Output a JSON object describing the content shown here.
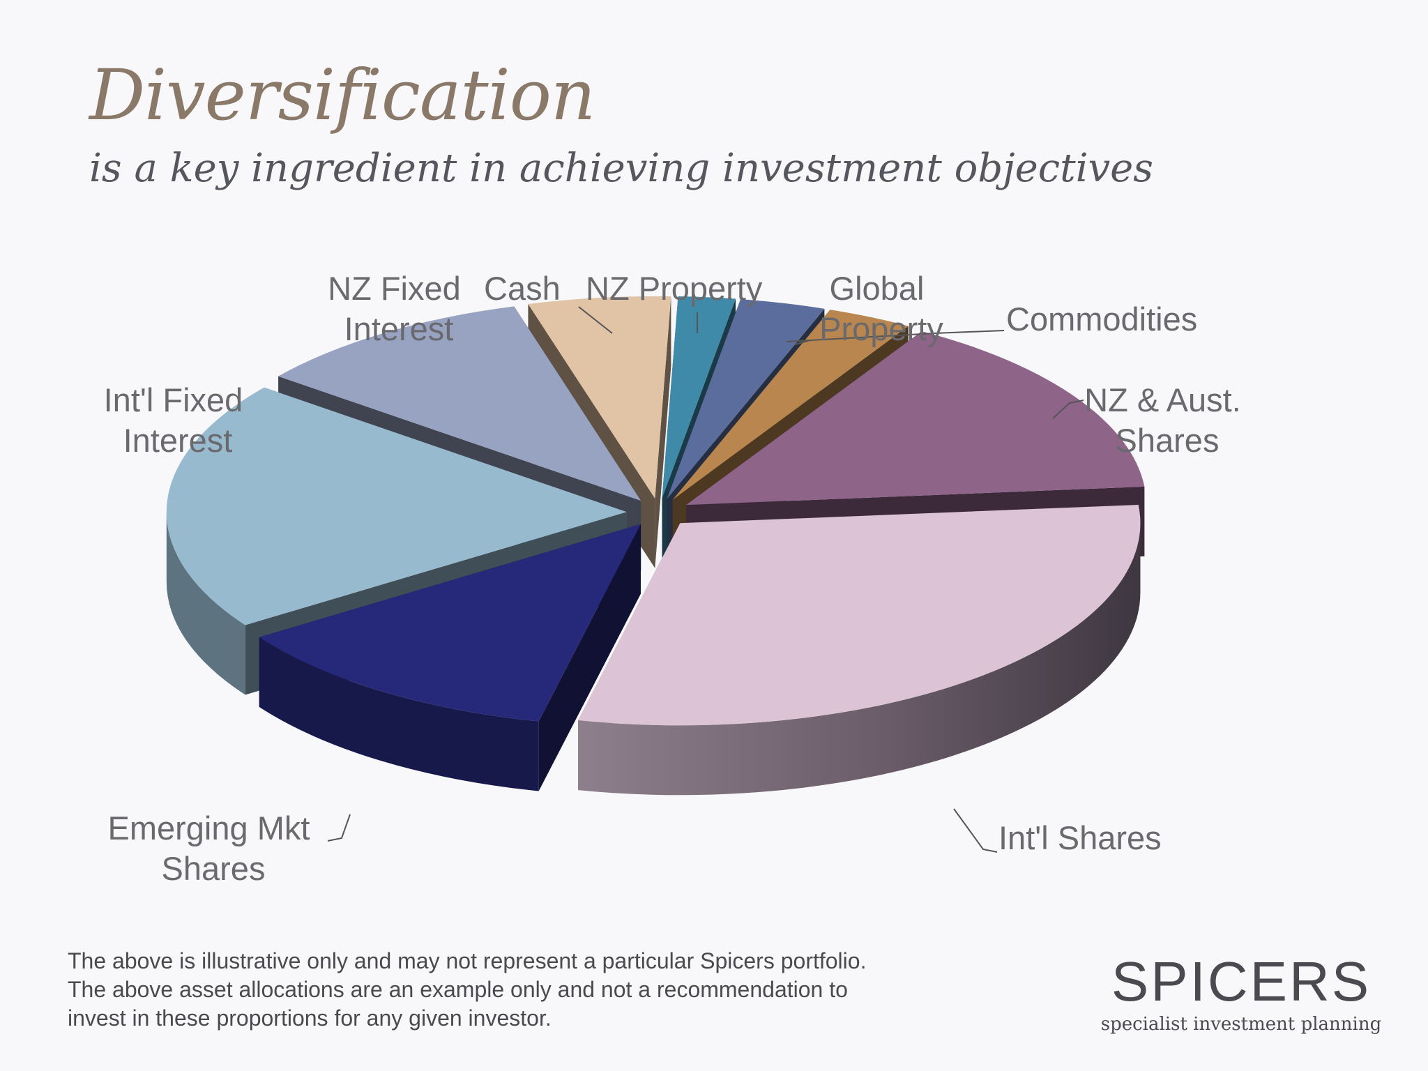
{
  "slide": {
    "title": "Diversification",
    "subtitle": "is a key ingredient in achieving investment objectives"
  },
  "chart_data": {
    "type": "pie",
    "style": "3d exploded",
    "title": "",
    "slices": [
      {
        "label": "NZ Property",
        "value": 2,
        "color": "#3f8aa8"
      },
      {
        "label": "Global Property",
        "value": 3,
        "color": "#5a6d9c"
      },
      {
        "label": "Commodities",
        "value": 3,
        "color": "#b8864e"
      },
      {
        "label": "NZ & Aust. Shares",
        "value": 15,
        "color": "#8e6489"
      },
      {
        "label": "Int'l Shares",
        "value": 30,
        "color": "#dcc4d6"
      },
      {
        "label": "Emerging Mkt Shares",
        "value": 12,
        "color": "#262879"
      },
      {
        "label": "Int'l Fixed Interest",
        "value": 20,
        "color": "#97bace"
      },
      {
        "label": "NZ Fixed Interest",
        "value": 10,
        "color": "#98a3c2"
      },
      {
        "label": "Cash",
        "value": 5,
        "color": "#e1c3a5"
      }
    ]
  },
  "labels": {
    "nz_fixed": [
      "NZ Fixed",
      "Interest"
    ],
    "cash": "Cash",
    "nz_property": "NZ Property",
    "global_property": [
      "Global",
      "Property"
    ],
    "commodities": "Commodities",
    "nz_aust": [
      "NZ & Aust.",
      "Shares"
    ],
    "intl_fixed": [
      "Int'l Fixed",
      "Interest"
    ],
    "emerging": [
      "Emerging Mkt",
      "Shares"
    ],
    "intl_shares": "Int'l Shares"
  },
  "disclaimer": [
    "The above is illustrative only and may not represent a particular Spicers portfolio.",
    "The above asset allocations are an example only and not a recommendation to",
    "invest in these proportions for any given investor."
  ],
  "brand": {
    "name": "SPICERS",
    "tagline": "specialist investment planning"
  }
}
